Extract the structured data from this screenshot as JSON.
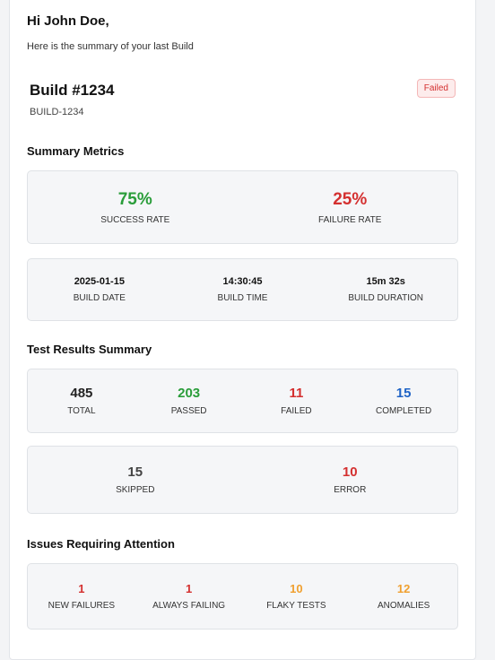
{
  "colors": {
    "success": "#2a9d3a",
    "danger": "#d43030",
    "info": "#1f63c6",
    "warning": "#f0a030",
    "dark": "#333333"
  },
  "greeting": "Hi John Doe,",
  "intro": "Here is the summary of your last Build",
  "build": {
    "title": "Build #1234",
    "id": "BUILD-1234",
    "status": "Failed"
  },
  "summary_metrics": {
    "title": "Summary Metrics",
    "rates": [
      {
        "value": "75%",
        "label": "SUCCESS RATE"
      },
      {
        "value": "25%",
        "label": "FAILURE RATE"
      }
    ],
    "details": [
      {
        "value": "2025-01-15",
        "label": "BUILD DATE"
      },
      {
        "value": "14:30:45",
        "label": "BUILD TIME"
      },
      {
        "value": "15m 32s",
        "label": "BUILD DURATION"
      }
    ]
  },
  "test_results": {
    "title": "Test Results Summary",
    "row1": [
      {
        "value": "485",
        "label": "TOTAL"
      },
      {
        "value": "203",
        "label": "PASSED"
      },
      {
        "value": "11",
        "label": "FAILED"
      },
      {
        "value": "15",
        "label": "COMPLETED"
      }
    ],
    "row2": [
      {
        "value": "15",
        "label": "SKIPPED"
      },
      {
        "value": "10",
        "label": "ERROR"
      }
    ]
  },
  "issues": {
    "title": "Issues Requiring Attention",
    "items": [
      {
        "value": "1",
        "label": "NEW FAILURES"
      },
      {
        "value": "1",
        "label": "ALWAYS FAILING"
      },
      {
        "value": "10",
        "label": "FLAKY TESTS"
      },
      {
        "value": "12",
        "label": "ANOMALIES"
      }
    ]
  }
}
